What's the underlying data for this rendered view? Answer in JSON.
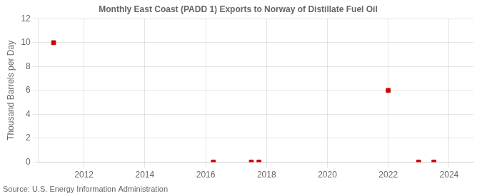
{
  "chart_data": {
    "type": "scatter",
    "title": "Monthly East Coast (PADD 1) Exports to Norway of Distillate Fuel Oil",
    "ylabel": "Thousand Barrels per Day",
    "source": "Source: U.S. Energy Information Administration",
    "x": [
      2011.0,
      2016.25,
      2017.5,
      2017.75,
      2022.0,
      2023.0,
      2023.5
    ],
    "values": [
      10.0,
      0.0,
      0.0,
      0.0,
      6.0,
      0.0,
      0.0
    ],
    "color": "#cc0000",
    "marker": "square",
    "xlim": [
      2010.5,
      2024.8
    ],
    "ylim": [
      0,
      12
    ],
    "xticks": [
      2012,
      2014,
      2016,
      2018,
      2020,
      2022,
      2024
    ],
    "yticks": [
      0,
      2,
      4,
      6,
      8,
      10,
      12
    ],
    "grid": true
  }
}
